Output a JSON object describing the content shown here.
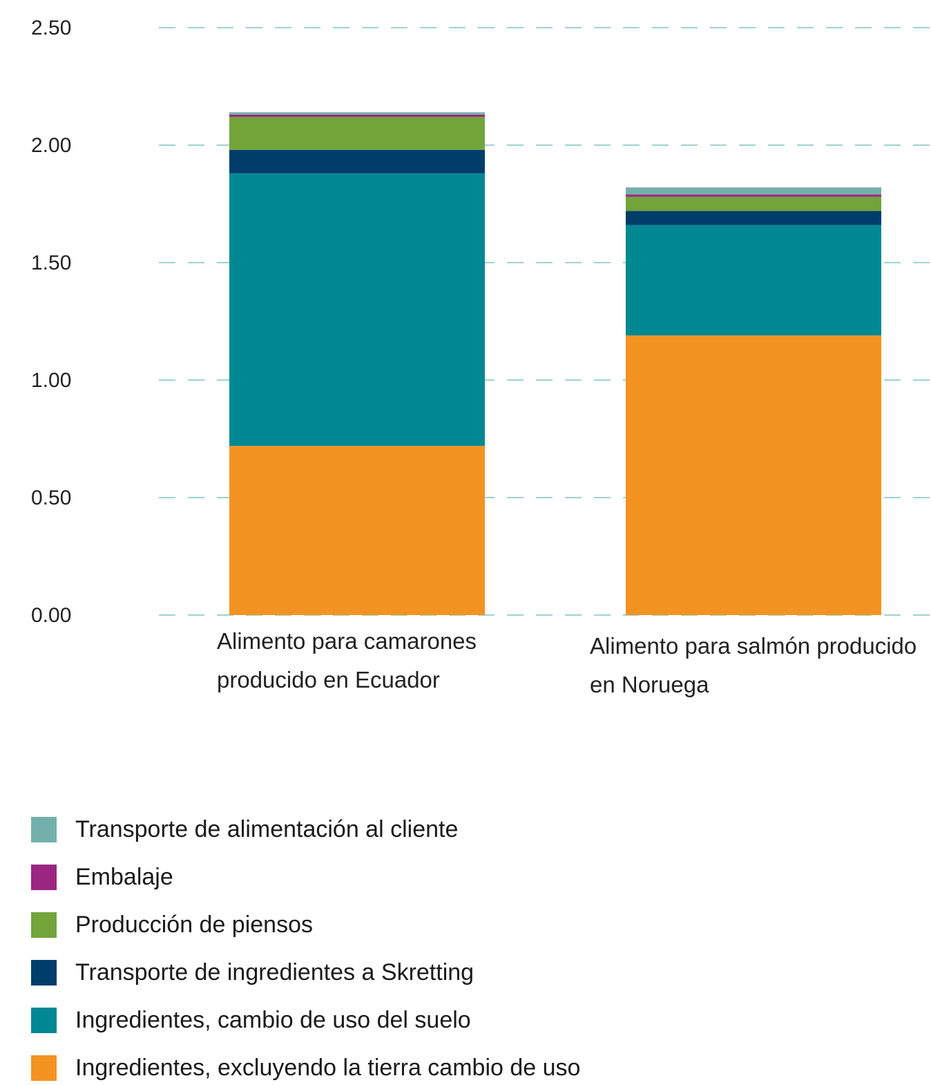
{
  "chart_data": {
    "type": "bar",
    "stacked": true,
    "categories": [
      [
        "Alimento para camarones",
        "producido en Ecuador"
      ],
      [
        "Alimento para salmón producido",
        "en Noruega"
      ]
    ],
    "series": [
      {
        "name": "Ingredientes, excluyendo la tierra cambio de uso",
        "color": "#f39322",
        "values": [
          0.72,
          1.19
        ]
      },
      {
        "name": "Ingredientes, cambio de uso del suelo",
        "color": "#008893",
        "values": [
          1.16,
          0.47
        ]
      },
      {
        "name": "Transporte de ingredientes a Skretting",
        "color": "#003d6b",
        "values": [
          0.1,
          0.06
        ]
      },
      {
        "name": "Producción de piensos",
        "color": "#72a43a",
        "values": [
          0.14,
          0.06
        ]
      },
      {
        "name": "Embalaje",
        "color": "#9b2682",
        "values": [
          0.01,
          0.01
        ]
      },
      {
        "name": "Transporte de alimentación al cliente",
        "color": "#74b0ab",
        "values": [
          0.01,
          0.03
        ]
      }
    ],
    "yticks": [
      "0.00",
      "0.50",
      "1.00",
      "1.50",
      "2.00",
      "2.50"
    ],
    "ylim": [
      0,
      2.5
    ],
    "grid": true,
    "grid_color": "#7fc4c0",
    "legend_position": "bottom-left"
  }
}
